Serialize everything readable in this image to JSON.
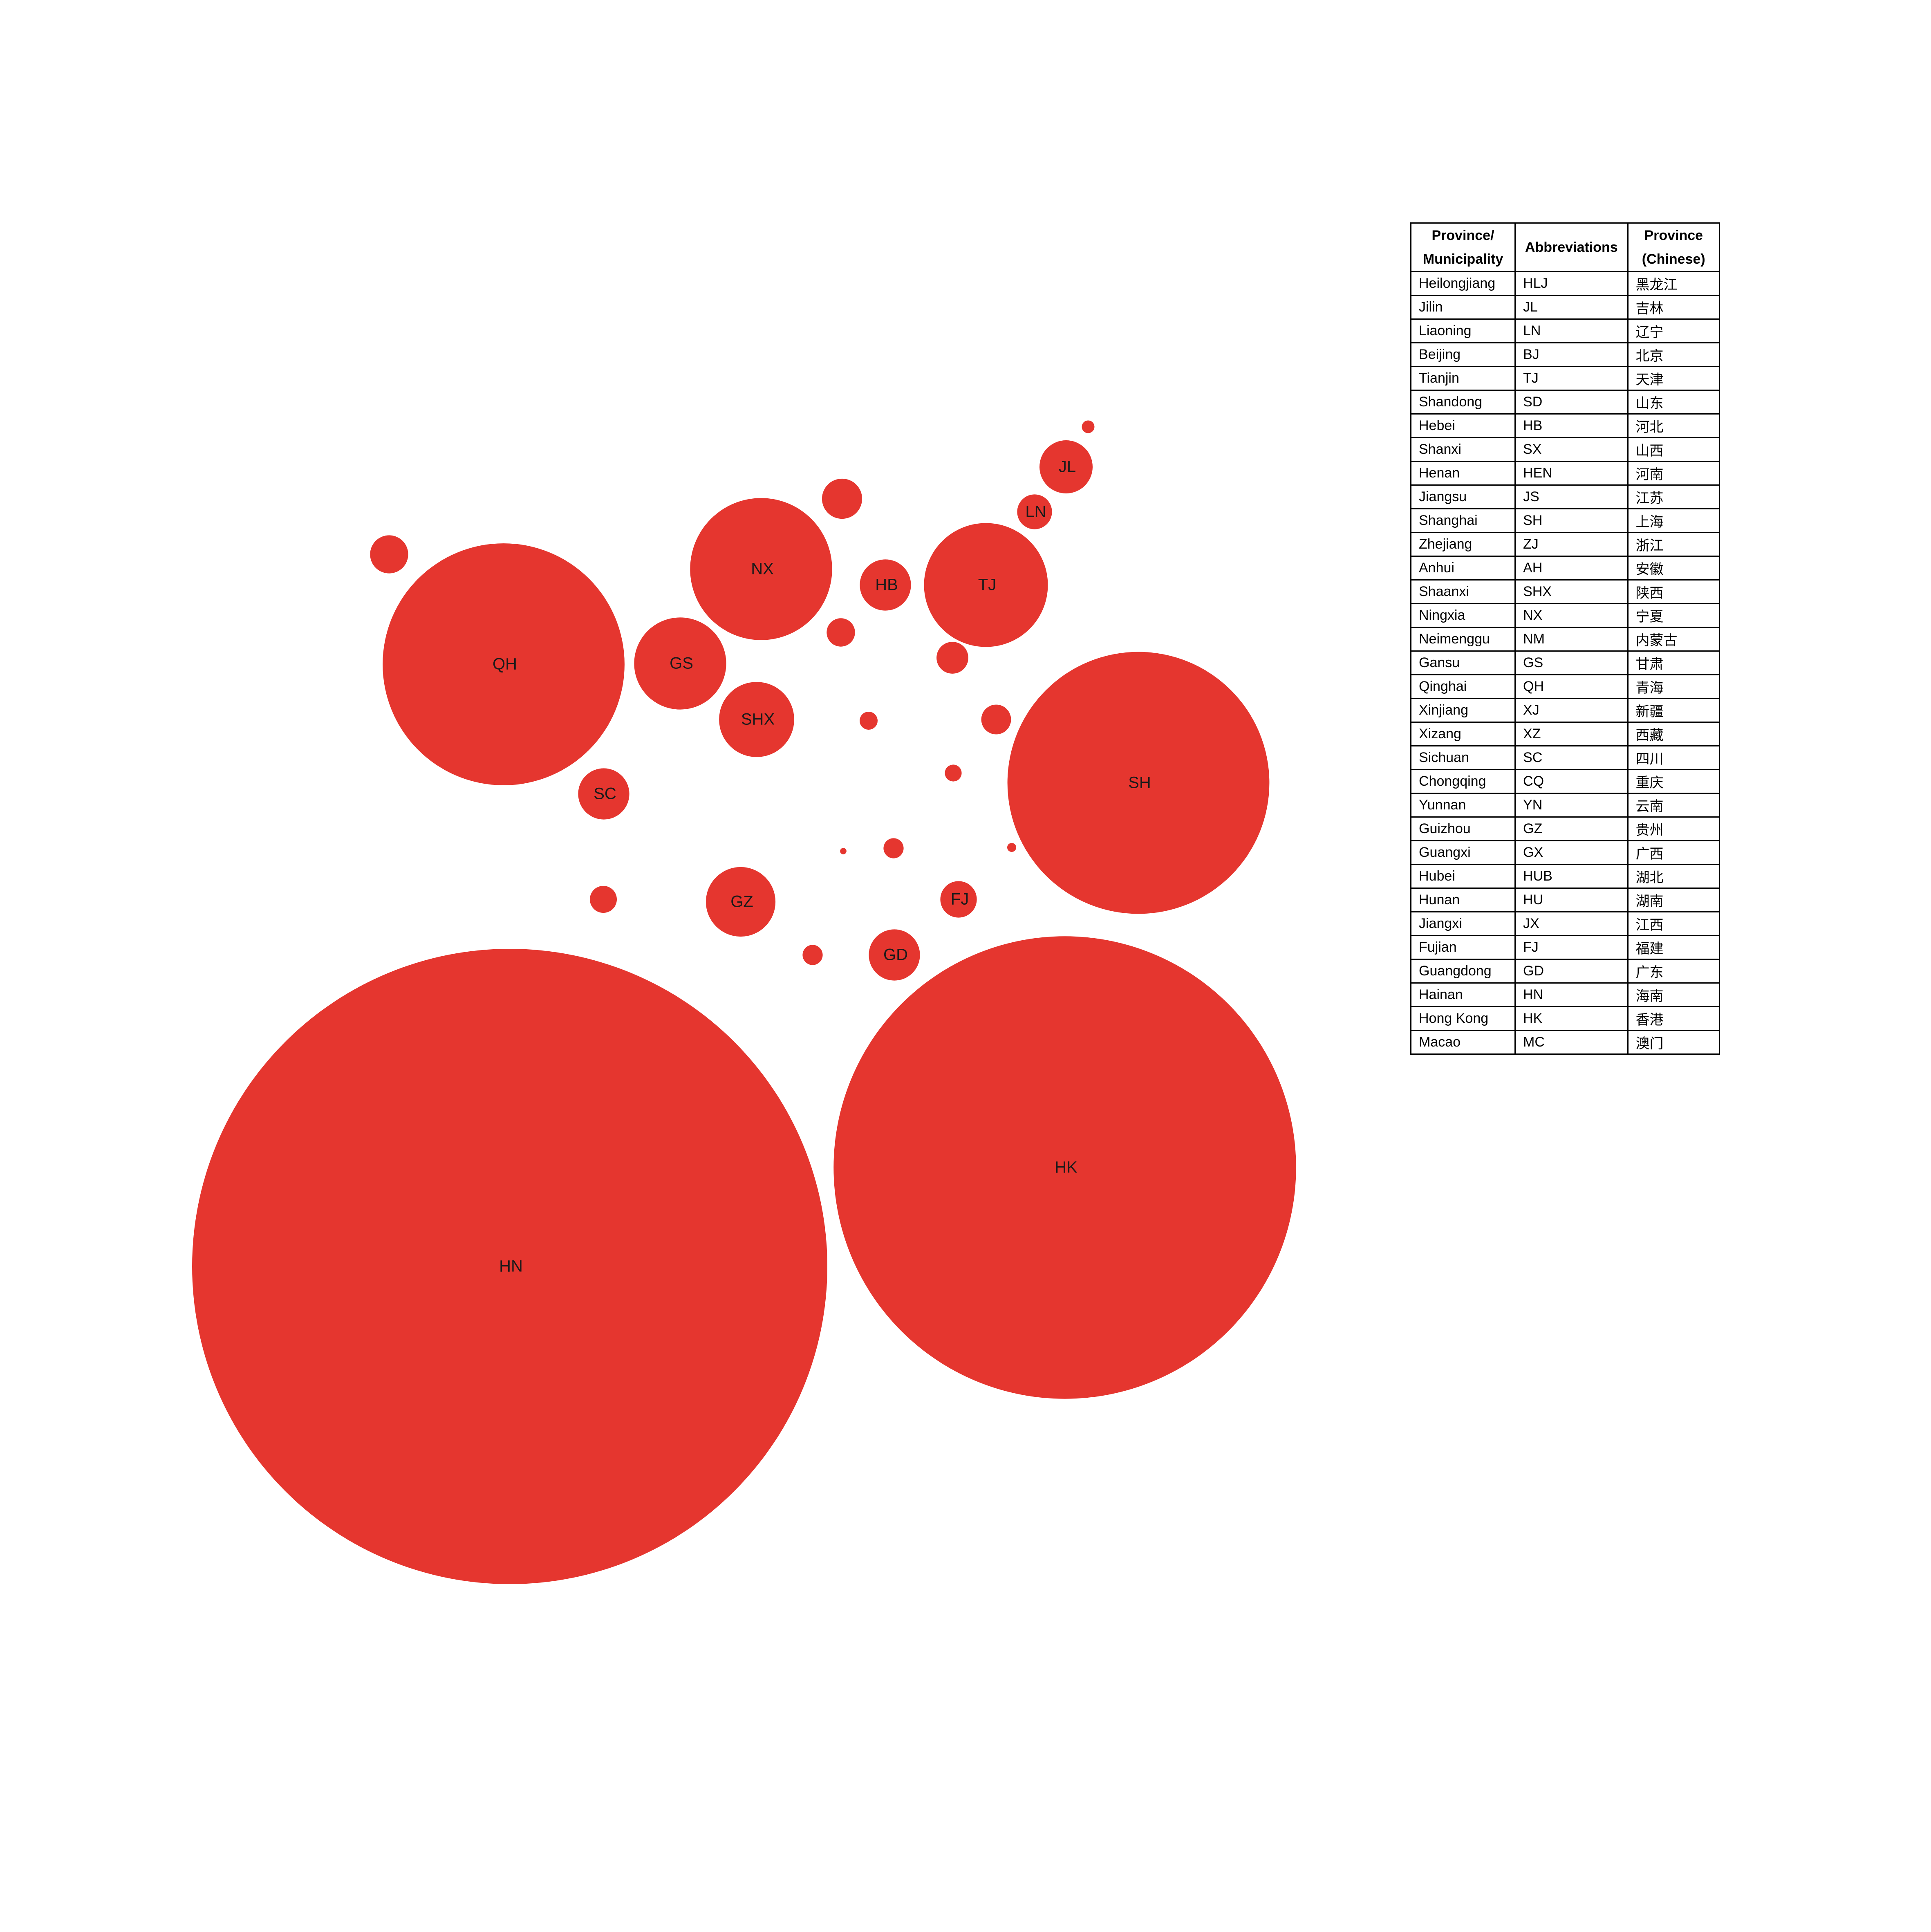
{
  "colors": {
    "bubble": "#e5362f",
    "label": "#1a1a1a",
    "table_border": "#000000"
  },
  "chart_data": {
    "type": "bubble",
    "bubbles": [
      {
        "label": "HN",
        "size": 100
      },
      {
        "label": "HK",
        "size": 53
      },
      {
        "label": "SH",
        "size": 17
      },
      {
        "label": "QH",
        "size": 14.5
      },
      {
        "label": "NX",
        "size": 5
      },
      {
        "label": "TJ",
        "size": 3.8
      },
      {
        "label": "GS",
        "size": 2.1
      },
      {
        "label": "SHX",
        "size": 1.4
      },
      {
        "label": "GZ",
        "size": 1.2
      },
      {
        "label": "JL",
        "size": 0.7
      },
      {
        "label": "HB",
        "size": 0.65
      },
      {
        "label": "GD",
        "size": 0.65
      },
      {
        "label": "SC",
        "size": 0.65
      },
      {
        "label": "LN",
        "size": 0.3
      },
      {
        "label": "FJ",
        "size": 0.33
      },
      {
        "label": "",
        "size": 0.4
      },
      {
        "label": "",
        "size": 0.36
      },
      {
        "label": "",
        "size": 0.25
      },
      {
        "label": "",
        "size": 0.22
      },
      {
        "label": "",
        "size": 0.2
      },
      {
        "label": "",
        "size": 0.18
      },
      {
        "label": "",
        "size": 0.1
      },
      {
        "label": "",
        "size": 0.1
      },
      {
        "label": "",
        "size": 0.08
      },
      {
        "label": "",
        "size": 0.07
      },
      {
        "label": "",
        "size": 0.04
      },
      {
        "label": "",
        "size": 0.02
      },
      {
        "label": "",
        "size": 0.01
      }
    ]
  },
  "legend": {
    "headers": [
      "Province/ Municipality",
      "Abbreviations",
      "Province (Chinese)"
    ],
    "rows": [
      [
        "Heilongjiang",
        "HLJ",
        "黑龙江"
      ],
      [
        "Jilin",
        "JL",
        "吉林"
      ],
      [
        "Liaoning",
        "LN",
        "辽宁"
      ],
      [
        "Beijing",
        "BJ",
        "北京"
      ],
      [
        "Tianjin",
        "TJ",
        "天津"
      ],
      [
        "Shandong",
        "SD",
        "山东"
      ],
      [
        "Hebei",
        "HB",
        "河北"
      ],
      [
        "Shanxi",
        "SX",
        "山西"
      ],
      [
        "Henan",
        "HEN",
        "河南"
      ],
      [
        "Jiangsu",
        "JS",
        "江苏"
      ],
      [
        "Shanghai",
        "SH",
        "上海"
      ],
      [
        "Zhejiang",
        "ZJ",
        "浙江"
      ],
      [
        "Anhui",
        "AH",
        "安徽"
      ],
      [
        "Shaanxi",
        "SHX",
        "陕西"
      ],
      [
        "Ningxia",
        "NX",
        "宁夏"
      ],
      [
        "Neimenggu",
        "NM",
        "内蒙古"
      ],
      [
        "Gansu",
        "GS",
        "甘肃"
      ],
      [
        "Qinghai",
        "QH",
        "青海"
      ],
      [
        "Xinjiang",
        "XJ",
        "新疆"
      ],
      [
        "Xizang",
        "XZ",
        "西藏"
      ],
      [
        "Sichuan",
        "SC",
        "四川"
      ],
      [
        "Chongqing",
        "CQ",
        "重庆"
      ],
      [
        "Yunnan",
        "YN",
        "云南"
      ],
      [
        "Guizhou",
        "GZ",
        "贵州"
      ],
      [
        "Guangxi",
        "GX",
        "广西"
      ],
      [
        "Hubei",
        "HUB",
        "湖北"
      ],
      [
        "Hunan",
        "HU",
        "湖南"
      ],
      [
        "Jiangxi",
        "JX",
        "江西"
      ],
      [
        "Fujian",
        "FJ",
        "福建"
      ],
      [
        "Guangdong",
        "GD",
        "广东"
      ],
      [
        "Hainan",
        "HN",
        "海南"
      ],
      [
        "Hong Kong",
        "HK",
        "香港"
      ],
      [
        "Macao",
        "MC",
        "澳门"
      ]
    ]
  }
}
